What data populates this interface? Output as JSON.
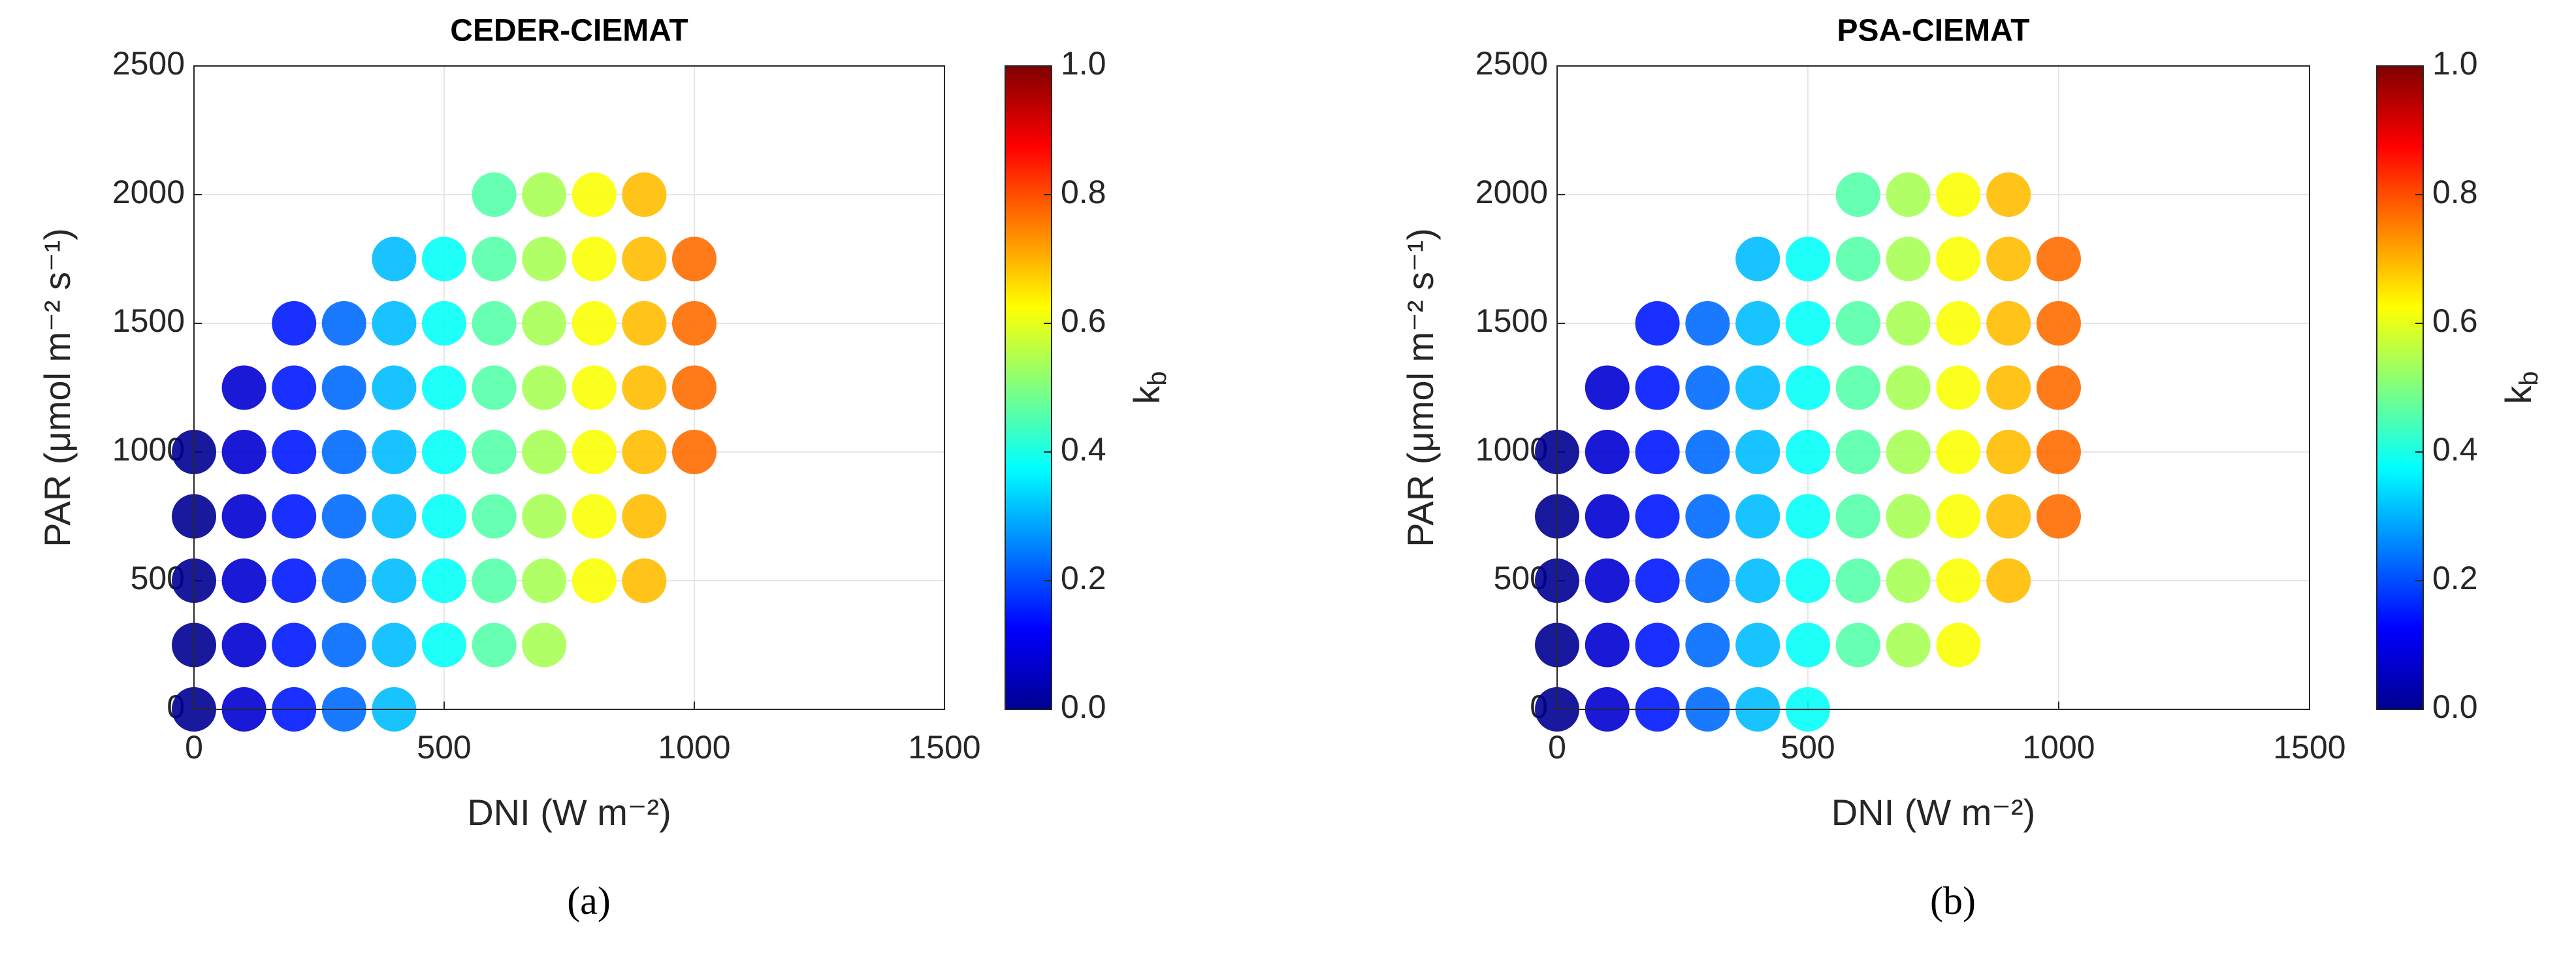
{
  "chart_data": [
    {
      "type": "scatter",
      "title": "CEDER-CIEMAT",
      "label": "(a)",
      "x_label": "DNI (W m⁻²)",
      "y_label": "PAR (μmol m⁻² s⁻¹)",
      "colorbar_label": "k",
      "colorbar_label_sub": "b",
      "colormap": "jet",
      "xlim": [
        0,
        1500
      ],
      "xticks": [
        0,
        500,
        1000,
        1500
      ],
      "ylim": [
        0,
        2500
      ],
      "yticks": [
        0,
        500,
        1000,
        1500,
        2000,
        2500
      ],
      "clim": [
        0,
        1
      ],
      "cticks": [
        {
          "value": 0,
          "label": "0.0"
        },
        {
          "value": 0.2,
          "label": "0.2"
        },
        {
          "value": 0.4,
          "label": "0.4"
        },
        {
          "value": 0.6,
          "label": "0.6"
        },
        {
          "value": 0.8,
          "label": "0.8"
        },
        {
          "value": 1,
          "label": "1.0"
        }
      ],
      "grid": true,
      "x": [
        0,
        0,
        0,
        0,
        0,
        100,
        100,
        100,
        100,
        100,
        100,
        200,
        200,
        200,
        200,
        200,
        200,
        200,
        300,
        300,
        300,
        300,
        300,
        300,
        300,
        400,
        400,
        400,
        400,
        400,
        400,
        400,
        400,
        500,
        500,
        500,
        500,
        500,
        500,
        500,
        600,
        600,
        600,
        600,
        600,
        600,
        600,
        600,
        700,
        700,
        700,
        700,
        700,
        700,
        700,
        700,
        800,
        800,
        800,
        800,
        800,
        800,
        800,
        900,
        900,
        900,
        900,
        900,
        900,
        900,
        1000,
        1000,
        1000,
        1000
      ],
      "y": [
        0,
        250,
        500,
        750,
        1000,
        0,
        250,
        500,
        750,
        1000,
        1250,
        0,
        250,
        500,
        750,
        1000,
        1250,
        1500,
        0,
        250,
        500,
        750,
        1000,
        1250,
        1500,
        0,
        250,
        500,
        750,
        1000,
        1250,
        1500,
        1750,
        250,
        500,
        750,
        1000,
        1250,
        1500,
        1750,
        250,
        500,
        750,
        1000,
        1250,
        1500,
        1750,
        2000,
        250,
        500,
        750,
        1000,
        1250,
        1500,
        1750,
        2000,
        500,
        750,
        1000,
        1250,
        1500,
        1750,
        2000,
        500,
        750,
        1000,
        1250,
        1500,
        1750,
        2000,
        1000,
        1250,
        1500,
        1750
      ],
      "c": [
        0.02,
        0.02,
        0.02,
        0.02,
        0.02,
        0.08,
        0.08,
        0.08,
        0.08,
        0.08,
        0.08,
        0.15,
        0.15,
        0.15,
        0.15,
        0.15,
        0.15,
        0.15,
        0.23,
        0.23,
        0.23,
        0.23,
        0.23,
        0.23,
        0.23,
        0.31,
        0.31,
        0.31,
        0.31,
        0.31,
        0.31,
        0.31,
        0.31,
        0.38,
        0.38,
        0.38,
        0.38,
        0.38,
        0.38,
        0.38,
        0.46,
        0.46,
        0.46,
        0.46,
        0.46,
        0.46,
        0.46,
        0.46,
        0.54,
        0.54,
        0.54,
        0.54,
        0.54,
        0.54,
        0.54,
        0.54,
        0.62,
        0.62,
        0.62,
        0.62,
        0.62,
        0.62,
        0.62,
        0.69,
        0.69,
        0.69,
        0.69,
        0.69,
        0.69,
        0.69,
        0.77,
        0.77,
        0.77,
        0.77
      ]
    },
    {
      "type": "scatter",
      "title": "PSA-CIEMAT",
      "label": "(b)",
      "x_label": "DNI (W m⁻²)",
      "y_label": "PAR (μmol m⁻² s⁻¹)",
      "colorbar_label": "k",
      "colorbar_label_sub": "b",
      "colormap": "jet",
      "xlim": [
        0,
        1500
      ],
      "xticks": [
        0,
        500,
        1000,
        1500
      ],
      "ylim": [
        0,
        2500
      ],
      "yticks": [
        0,
        500,
        1000,
        1500,
        2000,
        2500
      ],
      "clim": [
        0,
        1
      ],
      "cticks": [
        {
          "value": 0,
          "label": "0.0"
        },
        {
          "value": 0.2,
          "label": "0.2"
        },
        {
          "value": 0.4,
          "label": "0.4"
        },
        {
          "value": 0.6,
          "label": "0.6"
        },
        {
          "value": 0.8,
          "label": "0.8"
        },
        {
          "value": 1,
          "label": "1.0"
        }
      ],
      "grid": true,
      "x": [
        0,
        0,
        0,
        0,
        0,
        100,
        100,
        100,
        100,
        100,
        100,
        200,
        200,
        200,
        200,
        200,
        200,
        200,
        300,
        300,
        300,
        300,
        300,
        300,
        300,
        400,
        400,
        400,
        400,
        400,
        400,
        400,
        400,
        500,
        500,
        500,
        500,
        500,
        500,
        500,
        500,
        600,
        600,
        600,
        600,
        600,
        600,
        600,
        600,
        700,
        700,
        700,
        700,
        700,
        700,
        700,
        700,
        800,
        800,
        800,
        800,
        800,
        800,
        800,
        800,
        900,
        900,
        900,
        900,
        900,
        900,
        900,
        1000,
        1000,
        1000,
        1000,
        1000
      ],
      "y": [
        0,
        250,
        500,
        750,
        1000,
        0,
        250,
        500,
        750,
        1000,
        1250,
        0,
        250,
        500,
        750,
        1000,
        1250,
        1500,
        0,
        250,
        500,
        750,
        1000,
        1250,
        1500,
        0,
        250,
        500,
        750,
        1000,
        1250,
        1500,
        1750,
        0,
        250,
        500,
        750,
        1000,
        1250,
        1500,
        1750,
        250,
        500,
        750,
        1000,
        1250,
        1500,
        1750,
        2000,
        250,
        500,
        750,
        1000,
        1250,
        1500,
        1750,
        2000,
        250,
        500,
        750,
        1000,
        1250,
        1500,
        1750,
        2000,
        500,
        750,
        1000,
        1250,
        1500,
        1750,
        2000,
        750,
        1000,
        1250,
        1500,
        1750
      ],
      "c": [
        0.02,
        0.02,
        0.02,
        0.02,
        0.02,
        0.08,
        0.08,
        0.08,
        0.08,
        0.08,
        0.08,
        0.15,
        0.15,
        0.15,
        0.15,
        0.15,
        0.15,
        0.15,
        0.23,
        0.23,
        0.23,
        0.23,
        0.23,
        0.23,
        0.23,
        0.31,
        0.31,
        0.31,
        0.31,
        0.31,
        0.31,
        0.31,
        0.31,
        0.38,
        0.38,
        0.38,
        0.38,
        0.38,
        0.38,
        0.38,
        0.38,
        0.46,
        0.46,
        0.46,
        0.46,
        0.46,
        0.46,
        0.46,
        0.46,
        0.54,
        0.54,
        0.54,
        0.54,
        0.54,
        0.54,
        0.54,
        0.54,
        0.62,
        0.62,
        0.62,
        0.62,
        0.62,
        0.62,
        0.62,
        0.62,
        0.69,
        0.69,
        0.69,
        0.69,
        0.69,
        0.69,
        0.69,
        0.77,
        0.77,
        0.77,
        0.77,
        0.77
      ]
    }
  ]
}
